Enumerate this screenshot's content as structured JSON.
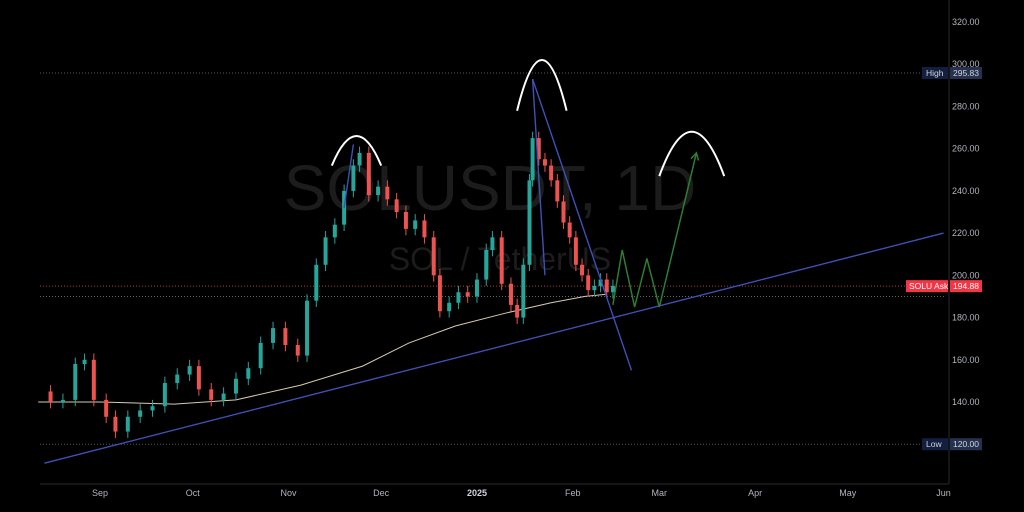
{
  "chart_data": {
    "type": "candlestick",
    "symbol": "SOLUSDT, 1D",
    "pair": "SOL / TetherUS",
    "y_ticks": [
      "320.00",
      "300.00",
      "280.00",
      "260.00",
      "240.00",
      "220.00",
      "200.00",
      "180.00",
      "160.00",
      "140.00"
    ],
    "y_tick_values": [
      320,
      300,
      280,
      260,
      240,
      220,
      200,
      180,
      160,
      140
    ],
    "ylim": [
      110,
      330
    ],
    "x_ticks": [
      {
        "label": "Sep",
        "date": "2024-09-01"
      },
      {
        "label": "Oct",
        "date": "2024-10-01"
      },
      {
        "label": "Nov",
        "date": "2024-11-01"
      },
      {
        "label": "Dec",
        "date": "2024-12-01"
      },
      {
        "label": "2025",
        "date": "2025-01-01",
        "bold": true
      },
      {
        "label": "Feb",
        "date": "2025-02-01"
      },
      {
        "label": "Mar",
        "date": "2025-03-01"
      },
      {
        "label": "Apr",
        "date": "2025-04-01"
      },
      {
        "label": "May",
        "date": "2025-05-01"
      },
      {
        "label": "Jun",
        "date": "2025-06-01"
      }
    ],
    "high": {
      "label": "High",
      "value": 295.83,
      "value_text": "295.83"
    },
    "low": {
      "label": "Low",
      "value": 120.0,
      "value_text": "120.00"
    },
    "ask": {
      "label": "SOLU Ask",
      "value": 194.88,
      "value_text": "194.88"
    },
    "support_level": 190,
    "closes": [
      {
        "date": "2024-08-12",
        "c": 145
      },
      {
        "date": "2024-08-16",
        "c": 140
      },
      {
        "date": "2024-08-20",
        "c": 141
      },
      {
        "date": "2024-08-24",
        "c": 158
      },
      {
        "date": "2024-08-27",
        "c": 160
      },
      {
        "date": "2024-08-30",
        "c": 141
      },
      {
        "date": "2024-09-03",
        "c": 133
      },
      {
        "date": "2024-09-06",
        "c": 126
      },
      {
        "date": "2024-09-10",
        "c": 133
      },
      {
        "date": "2024-09-14",
        "c": 136
      },
      {
        "date": "2024-09-18",
        "c": 138
      },
      {
        "date": "2024-09-22",
        "c": 149
      },
      {
        "date": "2024-09-26",
        "c": 153
      },
      {
        "date": "2024-09-30",
        "c": 157
      },
      {
        "date": "2024-10-03",
        "c": 146
      },
      {
        "date": "2024-10-07",
        "c": 141
      },
      {
        "date": "2024-10-11",
        "c": 144
      },
      {
        "date": "2024-10-15",
        "c": 151
      },
      {
        "date": "2024-10-19",
        "c": 156
      },
      {
        "date": "2024-10-23",
        "c": 168
      },
      {
        "date": "2024-10-27",
        "c": 175
      },
      {
        "date": "2024-10-31",
        "c": 167
      },
      {
        "date": "2024-11-04",
        "c": 162
      },
      {
        "date": "2024-11-07",
        "c": 188
      },
      {
        "date": "2024-11-10",
        "c": 205
      },
      {
        "date": "2024-11-13",
        "c": 218
      },
      {
        "date": "2024-11-16",
        "c": 224
      },
      {
        "date": "2024-11-19",
        "c": 240
      },
      {
        "date": "2024-11-22",
        "c": 252
      },
      {
        "date": "2024-11-24",
        "c": 258
      },
      {
        "date": "2024-11-27",
        "c": 238
      },
      {
        "date": "2024-11-30",
        "c": 242
      },
      {
        "date": "2024-12-03",
        "c": 236
      },
      {
        "date": "2024-12-06",
        "c": 230
      },
      {
        "date": "2024-12-09",
        "c": 222
      },
      {
        "date": "2024-12-12",
        "c": 226
      },
      {
        "date": "2024-12-15",
        "c": 218
      },
      {
        "date": "2024-12-18",
        "c": 200
      },
      {
        "date": "2024-12-20",
        "c": 183
      },
      {
        "date": "2024-12-23",
        "c": 187
      },
      {
        "date": "2024-12-26",
        "c": 192
      },
      {
        "date": "2024-12-29",
        "c": 190
      },
      {
        "date": "2025-01-01",
        "c": 198
      },
      {
        "date": "2025-01-04",
        "c": 212
      },
      {
        "date": "2025-01-06",
        "c": 218
      },
      {
        "date": "2025-01-09",
        "c": 196
      },
      {
        "date": "2025-01-12",
        "c": 186
      },
      {
        "date": "2025-01-14",
        "c": 180
      },
      {
        "date": "2025-01-16",
        "c": 205
      },
      {
        "date": "2025-01-18",
        "c": 245
      },
      {
        "date": "2025-01-19",
        "c": 265
      },
      {
        "date": "2025-01-21",
        "c": 255
      },
      {
        "date": "2025-01-23",
        "c": 252
      },
      {
        "date": "2025-01-25",
        "c": 245
      },
      {
        "date": "2025-01-27",
        "c": 235
      },
      {
        "date": "2025-01-29",
        "c": 225
      },
      {
        "date": "2025-01-31",
        "c": 218
      },
      {
        "date": "2025-02-02",
        "c": 205
      },
      {
        "date": "2025-02-04",
        "c": 200
      },
      {
        "date": "2025-02-06",
        "c": 193
      },
      {
        "date": "2025-02-08",
        "c": 195
      },
      {
        "date": "2025-02-10",
        "c": 198
      },
      {
        "date": "2025-02-12",
        "c": 192
      },
      {
        "date": "2025-02-14",
        "c": 195
      }
    ],
    "moving_average": [
      {
        "date": "2024-08-12",
        "v": 140
      },
      {
        "date": "2024-09-01",
        "v": 140
      },
      {
        "date": "2024-09-25",
        "v": 139
      },
      {
        "date": "2024-10-15",
        "v": 141
      },
      {
        "date": "2024-11-05",
        "v": 148
      },
      {
        "date": "2024-11-25",
        "v": 157
      },
      {
        "date": "2024-12-10",
        "v": 168
      },
      {
        "date": "2024-12-25",
        "v": 176
      },
      {
        "date": "2025-01-10",
        "v": 182
      },
      {
        "date": "2025-01-25",
        "v": 187
      },
      {
        "date": "2025-02-05",
        "v": 190
      },
      {
        "date": "2025-02-12",
        "v": 191
      }
    ],
    "annotations": {
      "trendlines": [
        {
          "color": "#3f51b5",
          "points": [
            {
              "date": "2024-08-14",
              "v": 111
            },
            {
              "date": "2025-06-01",
              "v": 220
            }
          ]
        },
        {
          "color": "#3f51b5",
          "points": [
            {
              "date": "2025-01-19",
              "v": 293
            },
            {
              "date": "2025-02-20",
              "v": 155
            }
          ]
        },
        {
          "color": "#3f51b5",
          "points": [
            {
              "date": "2025-01-19",
              "v": 293
            },
            {
              "date": "2025-01-23",
              "v": 200
            }
          ]
        },
        {
          "color": "#3f51b5",
          "points": [
            {
              "date": "2024-11-22",
              "v": 262
            },
            {
              "date": "2024-11-19",
              "v": 232
            }
          ]
        }
      ],
      "projection": {
        "color": "#2e7d32",
        "points": [
          {
            "date": "2025-02-14",
            "v": 186
          },
          {
            "date": "2025-02-17",
            "v": 212
          },
          {
            "date": "2025-02-21",
            "v": 185
          },
          {
            "date": "2025-02-25",
            "v": 208
          },
          {
            "date": "2025-03-01",
            "v": 185
          },
          {
            "date": "2025-03-13",
            "v": 258
          }
        ]
      },
      "arcs": [
        {
          "date_from": "2024-11-15",
          "date_to": "2024-12-01",
          "v_from": 252,
          "v_peak": 266
        },
        {
          "date_from": "2025-01-14",
          "date_to": "2025-01-30",
          "v_from": 278,
          "v_peak": 302
        },
        {
          "date_from": "2025-03-01",
          "date_to": "2025-03-22",
          "v_from": 247,
          "v_peak": 268
        }
      ]
    }
  }
}
